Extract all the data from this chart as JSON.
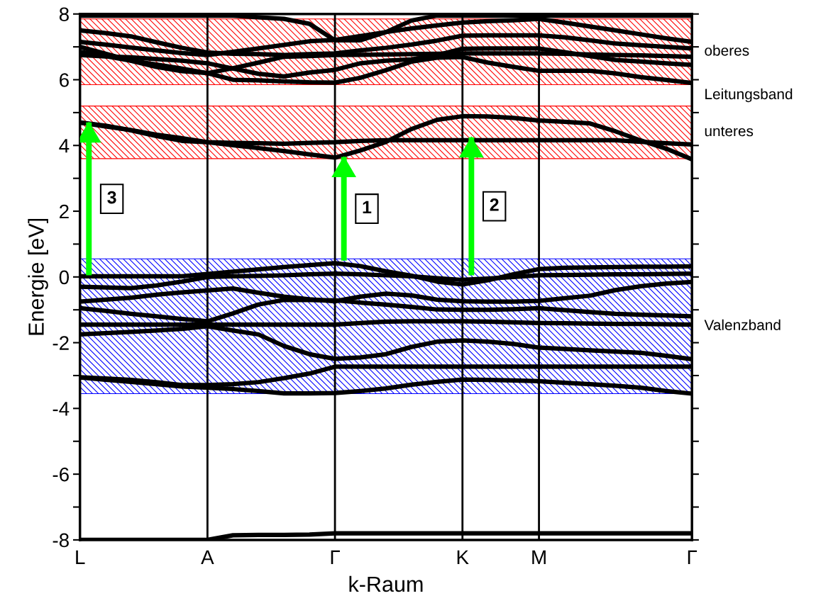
{
  "chart_data": {
    "type": "line",
    "xlabel": "k-Raum",
    "ylabel": "Energie [eV]",
    "categories": [
      "L",
      null,
      null,
      null,
      null,
      "A",
      null,
      null,
      null,
      null,
      "Γ",
      null,
      null,
      null,
      null,
      "K",
      null,
      null,
      "M",
      null,
      null,
      null,
      null,
      null,
      "Γ"
    ],
    "ylim": [
      -8,
      8
    ],
    "yticks": [
      -8,
      {
        "value": -7,
        "label": null
      },
      -6,
      {
        "value": -5,
        "label": null
      },
      -4,
      {
        "value": -3,
        "label": null
      },
      -2,
      {
        "value": -1,
        "label": null
      },
      0,
      {
        "value": 1,
        "label": null
      },
      2,
      {
        "value": 3,
        "label": null
      },
      4,
      {
        "value": 5,
        "label": null
      },
      6,
      {
        "value": 7,
        "label": null
      },
      8
    ],
    "grid": false,
    "line_style": "solid",
    "marker": "none",
    "ref_lines": [
      {
        "axis": "x",
        "value": "A",
        "label": null,
        "color": "#000000"
      },
      {
        "axis": "x",
        "value": "Γ",
        "label": null,
        "color": "#000000"
      },
      {
        "axis": "x",
        "value": "K",
        "label": null,
        "color": "#000000"
      },
      {
        "axis": "x",
        "value": "M",
        "label": null,
        "color": "#000000"
      }
    ],
    "bands": [
      {
        "axis": "y",
        "from": 5.85,
        "to": 7.85,
        "label": "oberes",
        "color": "#ff0000"
      },
      {
        "axis": "y",
        "from": 3.6,
        "to": 5.2,
        "label": "unteres",
        "color": "#ff0000"
      },
      {
        "axis": "y",
        "from": -3.55,
        "to": 0.55,
        "label": "Valenzband",
        "color": "#0000ff"
      }
    ],
    "annotations": [
      "Leitungsband",
      "3",
      "1",
      "2"
    ],
    "series": [
      {
        "color": "#000000",
        "values": [
          4.7,
          4.6,
          4.46,
          4.29,
          4.14,
          4.1,
          4.01,
          3.92,
          3.83,
          3.73,
          3.63,
          3.85,
          4.11,
          4.5,
          4.78,
          4.89,
          4.88,
          4.84,
          4.76,
          4.72,
          4.67,
          4.43,
          4.15,
          3.9,
          3.58
        ]
      },
      {
        "color": "#000000",
        "values": [
          4.7,
          4.58,
          4.47,
          4.33,
          4.22,
          4.1,
          4.08,
          4.07,
          4.05,
          4.08,
          4.1,
          4.14,
          4.16,
          4.16,
          4.16,
          4.16,
          4.16,
          4.16,
          4.16,
          4.16,
          4.16,
          4.16,
          4.11,
          4.07,
          4.03
        ]
      },
      {
        "color": "#000000",
        "values": [
          7.95,
          7.95,
          7.95,
          7.95,
          7.95,
          7.95,
          7.95,
          7.9,
          7.85,
          7.7,
          7.2,
          7.2,
          7.45,
          7.8,
          7.95,
          7.95,
          7.95,
          7.95,
          7.95,
          7.95,
          7.95,
          7.95,
          7.95,
          7.95,
          7.95
        ]
      },
      {
        "color": "#000000",
        "values": [
          7.5,
          7.42,
          7.32,
          7.14,
          6.97,
          6.83,
          6.79,
          6.78,
          6.75,
          6.78,
          6.8,
          6.89,
          6.97,
          7.07,
          7.19,
          7.34,
          7.35,
          7.35,
          7.35,
          7.29,
          7.2,
          7.1,
          7.05,
          7.0,
          6.95
        ]
      },
      {
        "color": "#000000",
        "values": [
          7.15,
          7.07,
          6.98,
          6.89,
          6.81,
          6.75,
          6.85,
          6.95,
          7.06,
          7.17,
          7.21,
          7.33,
          7.45,
          7.56,
          7.65,
          7.74,
          7.78,
          7.81,
          7.85,
          7.74,
          7.62,
          7.5,
          7.38,
          7.26,
          7.15
        ]
      },
      {
        "color": "#000000",
        "values": [
          6.85,
          6.72,
          6.58,
          6.46,
          6.34,
          6.2,
          6.35,
          6.52,
          6.7,
          6.72,
          6.75,
          6.76,
          6.77,
          6.78,
          6.79,
          6.8,
          6.8,
          6.8,
          6.8,
          6.79,
          6.77,
          6.75,
          6.74,
          6.72,
          6.7
        ]
      },
      {
        "color": "#000000",
        "values": [
          7.0,
          6.79,
          6.58,
          6.39,
          6.26,
          6.2,
          6.0,
          5.98,
          5.95,
          5.92,
          5.91,
          6.06,
          6.29,
          6.55,
          6.67,
          6.69,
          6.52,
          6.39,
          6.27,
          6.27,
          6.27,
          6.19,
          6.08,
          5.99,
          5.9
        ]
      },
      {
        "color": "#000000",
        "values": [
          6.75,
          6.71,
          6.68,
          6.63,
          6.58,
          6.5,
          6.34,
          6.18,
          6.1,
          6.22,
          6.3,
          6.5,
          6.58,
          6.62,
          6.75,
          6.94,
          6.95,
          6.95,
          6.95,
          6.84,
          6.72,
          6.6,
          6.55,
          6.5,
          6.45
        ]
      },
      {
        "color": "#000000",
        "values": [
          0.02,
          0.02,
          0.02,
          0.02,
          0.02,
          0.09,
          0.16,
          0.23,
          0.3,
          0.36,
          0.42,
          0.33,
          0.17,
          0.04,
          -0.14,
          -0.23,
          -0.1,
          0.08,
          0.24,
          0.28,
          0.29,
          0.3,
          0.31,
          0.31,
          0.32
        ]
      },
      {
        "color": "#000000",
        "values": [
          -0.3,
          -0.32,
          -0.34,
          -0.26,
          -0.14,
          0,
          0.02,
          0.03,
          0.05,
          0.08,
          0.1,
          0.08,
          0.05,
          0.02,
          -0.04,
          -0.09,
          -0.05,
          0,
          0.05,
          0.06,
          0.07,
          0.08,
          0.08,
          0.09,
          0.1
        ]
      },
      {
        "color": "#000000",
        "values": [
          -0.75,
          -0.69,
          -0.63,
          -0.54,
          -0.47,
          -0.41,
          -0.35,
          -0.48,
          -0.6,
          -0.68,
          -0.74,
          -0.6,
          -0.51,
          -0.56,
          -0.69,
          -0.74,
          -0.75,
          -0.75,
          -0.73,
          -0.65,
          -0.57,
          -0.4,
          -0.28,
          -0.2,
          -0.15
        ]
      },
      {
        "color": "#000000",
        "values": [
          -0.95,
          -1.03,
          -1.12,
          -1.2,
          -1.28,
          -1.35,
          -1.11,
          -0.84,
          -0.7,
          -0.7,
          -0.71,
          -0.78,
          -0.84,
          -0.91,
          -0.99,
          -1.0,
          -1.0,
          -0.98,
          -0.95,
          -1.01,
          -1.07,
          -1.12,
          -1.15,
          -1.17,
          -1.2
        ]
      },
      {
        "color": "#000000",
        "values": [
          -1.45,
          -1.45,
          -1.45,
          -1.45,
          -1.45,
          -1.45,
          -1.45,
          -1.45,
          -1.45,
          -1.45,
          -1.45,
          -1.4,
          -1.36,
          -1.35,
          -1.35,
          -1.35,
          -1.36,
          -1.38,
          -1.4,
          -1.41,
          -1.42,
          -1.43,
          -1.43,
          -1.44,
          -1.45
        ]
      },
      {
        "color": "#000000",
        "values": [
          -1.75,
          -1.71,
          -1.67,
          -1.63,
          -1.58,
          -1.5,
          -1.63,
          -1.75,
          -2.1,
          -2.35,
          -2.49,
          -2.45,
          -2.35,
          -2.13,
          -1.97,
          -1.93,
          -1.97,
          -2.04,
          -2.15,
          -2.19,
          -2.23,
          -2.27,
          -2.31,
          -2.4,
          -2.5
        ]
      },
      {
        "color": "#000000",
        "values": [
          -3.05,
          -3.09,
          -3.13,
          -3.2,
          -3.29,
          -3.29,
          -3.26,
          -3.2,
          -3.08,
          -2.94,
          -2.73,
          -2.73,
          -2.73,
          -2.73,
          -2.73,
          -2.73,
          -2.73,
          -2.73,
          -2.73,
          -2.73,
          -2.73,
          -2.73,
          -2.73,
          -2.73,
          -2.73
        ]
      },
      {
        "color": "#000000",
        "values": [
          -3.06,
          -3.13,
          -3.19,
          -3.26,
          -3.33,
          -3.37,
          -3.41,
          -3.47,
          -3.54,
          -3.54,
          -3.53,
          -3.47,
          -3.39,
          -3.28,
          -3.19,
          -3.12,
          -3.13,
          -3.15,
          -3.17,
          -3.22,
          -3.26,
          -3.31,
          -3.37,
          -3.47,
          -3.55
        ]
      },
      {
        "color": "#000000",
        "values": [
          -8.0,
          -8.0,
          -8.0,
          -8.0,
          -8.0,
          -8.0,
          -7.86,
          -7.85,
          -7.85,
          -7.84,
          -7.8,
          -7.8,
          -7.8,
          -7.8,
          -7.8,
          -7.8,
          -7.8,
          -7.8,
          -7.8,
          -7.8,
          -7.8,
          -7.8,
          -7.8,
          -7.8,
          -7.8
        ]
      },
      {
        "type": "bar",
        "color": "#00ff00",
        "values": [
          4.65,
          null,
          null,
          null,
          null,
          null,
          null,
          null,
          null,
          null,
          3.15,
          null,
          null,
          null,
          null,
          4.2,
          null,
          null,
          null,
          null,
          null,
          null,
          null,
          null,
          null
        ],
        "base": [
          0.05,
          null,
          null,
          null,
          null,
          null,
          null,
          null,
          null,
          null,
          0.5,
          null,
          null,
          null,
          null,
          0.05,
          null,
          null,
          null,
          null,
          null,
          null,
          null,
          null,
          null
        ]
      }
    ]
  }
}
